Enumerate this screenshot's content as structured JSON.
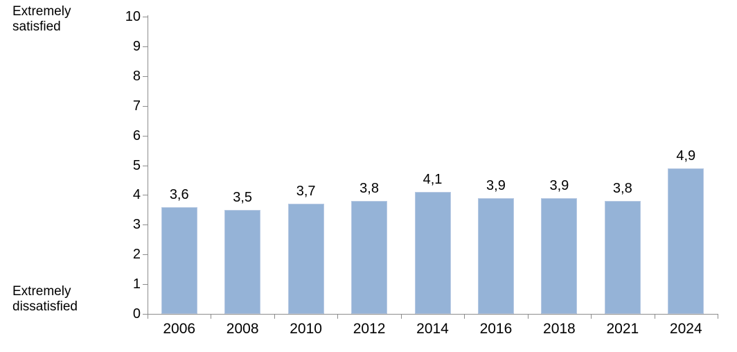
{
  "chart_data": {
    "type": "bar",
    "categories": [
      "2006",
      "2008",
      "2010",
      "2012",
      "2014",
      "2016",
      "2018",
      "2021",
      "2024"
    ],
    "values": [
      3.6,
      3.5,
      3.7,
      3.8,
      4.1,
      3.9,
      3.9,
      3.8,
      4.9
    ],
    "value_labels": [
      "3,6",
      "3,5",
      "3,7",
      "3,8",
      "4,1",
      "3,9",
      "3,9",
      "3,8",
      "4,9"
    ],
    "ylim": [
      0,
      10
    ],
    "yticks": [
      0,
      1,
      2,
      3,
      4,
      5,
      6,
      7,
      8,
      9,
      10
    ],
    "axis_annotations": {
      "top": "Extremely\nsatisfied",
      "bottom": "Extremely\ndissatisfied"
    },
    "grid": false,
    "legend": null,
    "bar_color": "#95B3D7",
    "bar_border_color": "#B7C9E3",
    "axis_color": "#8C8C8C",
    "label_color": "#000000"
  }
}
